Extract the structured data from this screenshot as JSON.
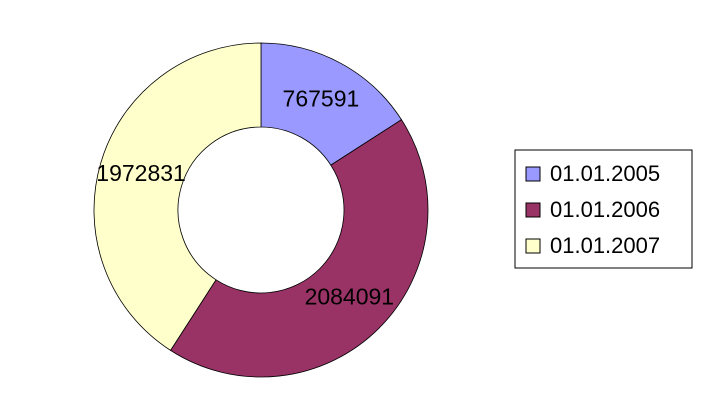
{
  "chart_data": {
    "type": "pie",
    "variant": "doughnut",
    "categories": [
      "01.01.2005",
      "01.01.2006",
      "01.01.2007"
    ],
    "values": [
      767591,
      2084091,
      1972831
    ],
    "colors": [
      "#9999FF",
      "#993366",
      "#FFFFCC"
    ],
    "data_labels": [
      "767591",
      "2084091",
      "1972831"
    ],
    "legend_position": "right",
    "title": ""
  }
}
